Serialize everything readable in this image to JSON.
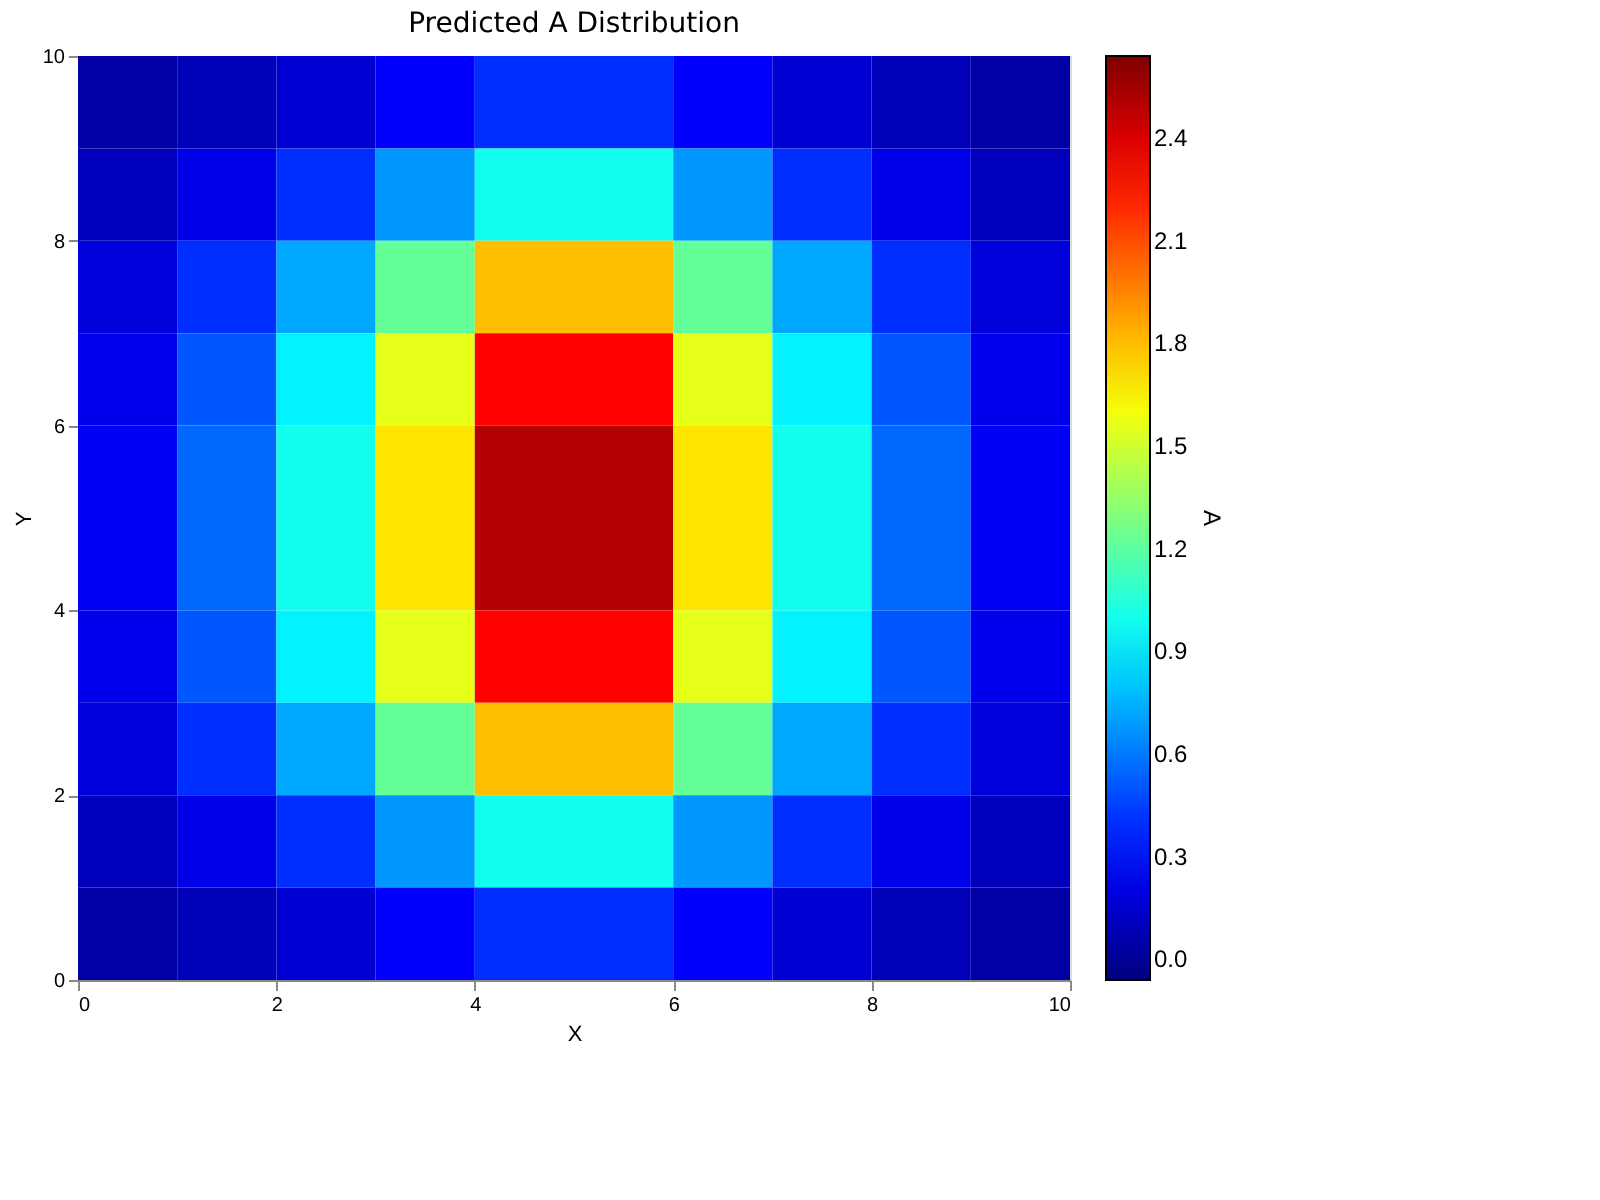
{
  "chart_data": {
    "type": "heatmap",
    "title": "Predicted A Distribution",
    "xlabel": "X",
    "ylabel": "Y",
    "clabel": "A",
    "x": [
      0.5,
      1.5,
      2.5,
      3.5,
      4.5,
      5.5,
      6.5,
      7.5,
      8.5,
      9.5
    ],
    "y": [
      9.5,
      8.5,
      7.5,
      6.5,
      5.5,
      4.5,
      3.5,
      2.5,
      1.5,
      0.5
    ],
    "cells": [
      [
        0.04,
        0.09,
        0.16,
        0.27,
        0.4,
        0.4,
        0.27,
        0.16,
        0.09,
        0.04
      ],
      [
        0.1,
        0.22,
        0.4,
        0.68,
        1.0,
        1.0,
        0.68,
        0.4,
        0.22,
        0.1
      ],
      [
        0.18,
        0.4,
        0.72,
        1.22,
        1.8,
        1.8,
        1.22,
        0.72,
        0.4,
        0.18
      ],
      [
        0.23,
        0.51,
        0.92,
        1.56,
        2.3,
        2.3,
        1.56,
        0.92,
        0.51,
        0.23
      ],
      [
        0.25,
        0.55,
        1.0,
        1.7,
        2.5,
        2.5,
        1.7,
        1.0,
        0.55,
        0.25
      ],
      [
        0.25,
        0.55,
        1.0,
        1.7,
        2.5,
        2.5,
        1.7,
        1.0,
        0.55,
        0.25
      ],
      [
        0.23,
        0.51,
        0.92,
        1.56,
        2.3,
        2.3,
        1.56,
        0.92,
        0.51,
        0.23
      ],
      [
        0.18,
        0.4,
        0.72,
        1.22,
        1.8,
        1.8,
        1.22,
        0.72,
        0.4,
        0.18
      ],
      [
        0.1,
        0.22,
        0.4,
        0.68,
        1.0,
        1.0,
        0.68,
        0.4,
        0.22,
        0.1
      ],
      [
        0.04,
        0.09,
        0.16,
        0.27,
        0.4,
        0.4,
        0.27,
        0.16,
        0.09,
        0.04
      ]
    ],
    "xlim": [
      0,
      10
    ],
    "ylim": [
      0,
      10
    ],
    "xticks": [
      0,
      2,
      4,
      6,
      8,
      10
    ],
    "yticks": [
      0,
      2,
      4,
      6,
      8,
      10
    ],
    "clim": [
      -0.06,
      2.64
    ],
    "cticks": [
      {
        "value": 0,
        "label": "0.0"
      },
      0.3,
      0.6,
      0.9,
      1.2,
      1.5,
      1.8,
      2.1,
      2.4
    ],
    "grid": false
  }
}
